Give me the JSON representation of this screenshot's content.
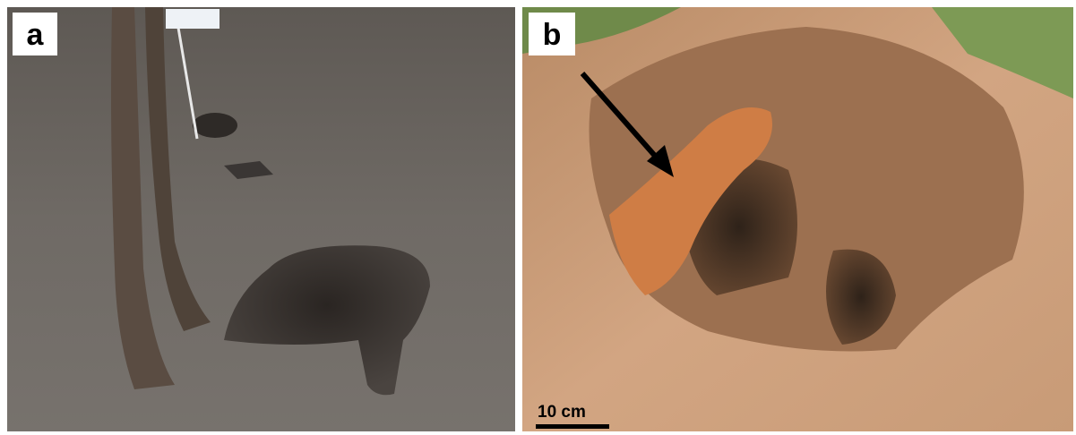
{
  "panels": [
    {
      "label": "a"
    },
    {
      "label": "b",
      "scale_bar": "10 cm"
    }
  ]
}
